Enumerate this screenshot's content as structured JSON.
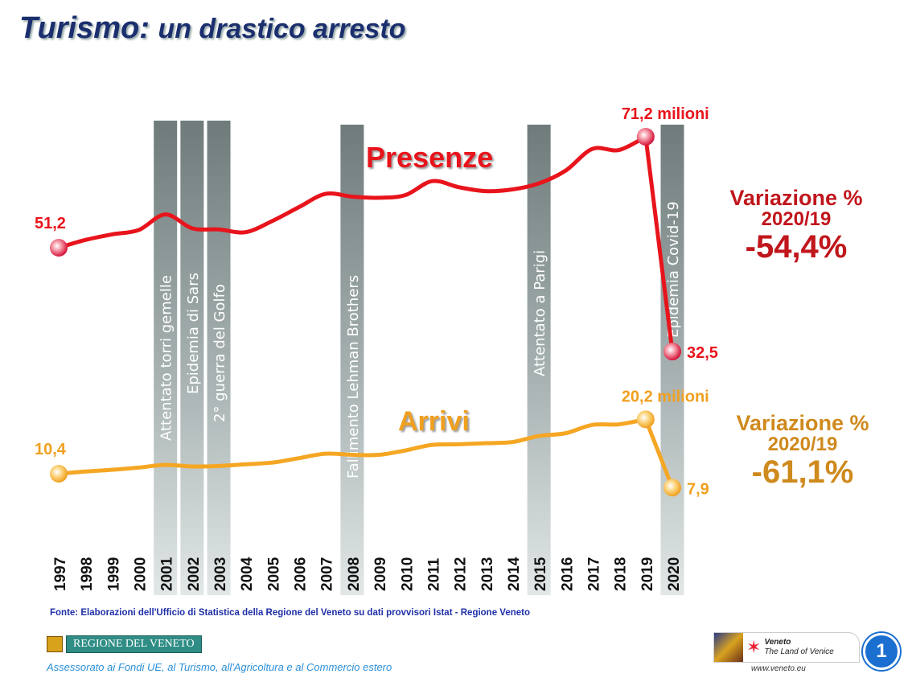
{
  "title_main": "Turismo:",
  "title_rest": "un drastico arresto",
  "chart_data": {
    "type": "line",
    "title": "Turismo: un drastico arresto",
    "x": [
      1997,
      1998,
      1999,
      2000,
      2001,
      2002,
      2003,
      2004,
      2005,
      2006,
      2007,
      2008,
      2009,
      2010,
      2011,
      2012,
      2013,
      2014,
      2015,
      2016,
      2017,
      2018,
      2019,
      2020
    ],
    "x_labels": [
      "1997",
      "1998",
      "1999",
      "2000",
      "2001",
      "2002",
      "2003",
      "2004",
      "2005",
      "2006",
      "2007",
      "2008",
      "2009",
      "2010",
      "2011",
      "2012",
      "2013",
      "2014",
      "2015",
      "2016",
      "2017",
      "2018",
      "2019",
      "2020"
    ],
    "unit": "milioni",
    "series": [
      {
        "name": "Presenze",
        "color": "#e8141c",
        "values": [
          51.2,
          52.6,
          53.6,
          54.4,
          57.2,
          54.7,
          54.5,
          54.0,
          56.0,
          58.5,
          60.9,
          60.4,
          60.2,
          60.7,
          63.2,
          62.1,
          61.4,
          61.7,
          62.8,
          65.1,
          69.0,
          68.8,
          71.2,
          32.5
        ],
        "labels": {
          "start": "51,2",
          "peak": "71,2 milioni",
          "end": "32,5"
        }
      },
      {
        "name": "Arrivi",
        "color": "#f5a623",
        "values": [
          10.4,
          10.8,
          11.1,
          11.5,
          12.0,
          11.7,
          11.8,
          12.1,
          12.4,
          13.2,
          14.0,
          13.8,
          13.8,
          14.6,
          15.6,
          15.7,
          15.9,
          16.1,
          17.2,
          17.7,
          19.2,
          19.3,
          20.2,
          7.9
        ],
        "labels": {
          "start": "10,4",
          "peak": "20,2 milioni",
          "end": "7,9"
        }
      }
    ],
    "events": [
      {
        "year": 2001,
        "label": "Attentato torri gemelle"
      },
      {
        "year": 2002,
        "label": "Epidemia di Sars"
      },
      {
        "year": 2003,
        "label": "2° guerra del Golfo"
      },
      {
        "year": 2008,
        "label": "Fallimento Lehman Brothers"
      },
      {
        "year": 2015,
        "label": "Attentato a Parigi"
      },
      {
        "year": 2020,
        "label": "Epidemia Covid-19"
      }
    ],
    "grid": false
  },
  "variation": {
    "presenze": {
      "heading": "Variazione %",
      "period": "2020/19",
      "value": "-54,4%"
    },
    "arrivi": {
      "heading": "Variazione %",
      "period": "2020/19",
      "value": "-61,1%"
    }
  },
  "footer": {
    "source": "Fonte: Elaborazioni dell'Ufficio di Statistica della Regione del Veneto su dati provvisori Istat - Regione Veneto",
    "region_logo": "REGIONE DEL VENETO",
    "assessorato": "Assessorato ai Fondi UE, al Turismo, all'Agricoltura e al Commercio estero",
    "veneto_logo_line1": "Veneto",
    "veneto_logo_line2": "The Land of Venice",
    "url": "www.veneto.eu",
    "page_number": "1"
  }
}
